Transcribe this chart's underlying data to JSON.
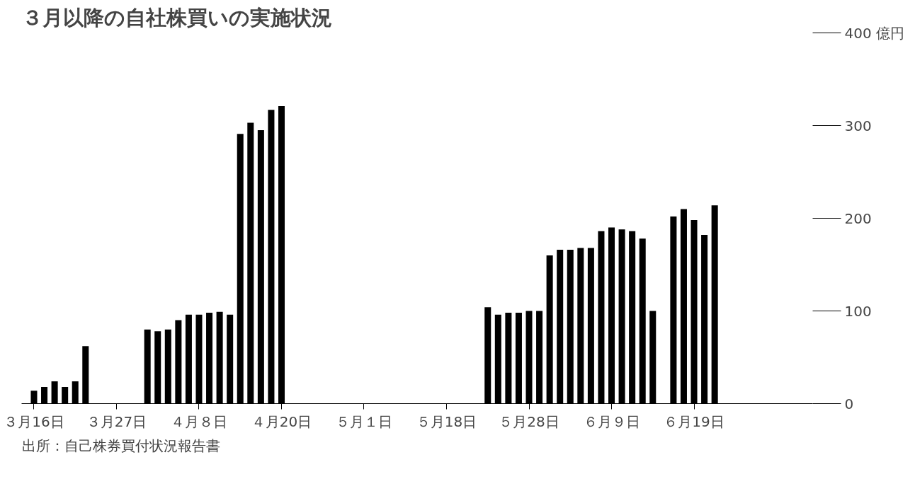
{
  "chart_data": {
    "type": "bar",
    "title": "３月以降の自社株買いの実施状況",
    "categories": [
      "３月16日",
      null,
      null,
      null,
      null,
      null,
      null,
      null,
      "３月27日",
      null,
      null,
      null,
      null,
      null,
      null,
      null,
      "４月８日",
      null,
      null,
      null,
      null,
      null,
      null,
      null,
      "４月20日",
      null,
      null,
      null,
      null,
      null,
      null,
      null,
      "５月１日",
      null,
      null,
      null,
      null,
      null,
      null,
      null,
      "５月18日",
      null,
      null,
      null,
      null,
      null,
      null,
      null,
      "５月28日",
      null,
      null,
      null,
      null,
      null,
      null,
      null,
      "６月９日",
      null,
      null,
      null,
      null,
      null,
      null,
      null,
      "６月19日",
      null,
      null,
      null,
      null,
      null,
      null,
      null
    ],
    "values": [
      14,
      18,
      24,
      18,
      24,
      62,
      0,
      0,
      0,
      0,
      0,
      80,
      78,
      80,
      90,
      96,
      96,
      98,
      99,
      96,
      291,
      303,
      295,
      317,
      321,
      0,
      0,
      0,
      0,
      0,
      0,
      0,
      0,
      0,
      0,
      0,
      0,
      0,
      0,
      0,
      0,
      0,
      0,
      0,
      104,
      96,
      98,
      98,
      100,
      100,
      160,
      166,
      166,
      168,
      168,
      186,
      190,
      188,
      186,
      178,
      100,
      0,
      202,
      210,
      198,
      182,
      214,
      0,
      0,
      0,
      0,
      0
    ],
    "color": "#000000",
    "ylim": [
      0,
      400
    ],
    "yticks": [
      0,
      100,
      200,
      300,
      {
        "value": 400,
        "label": "400 億円"
      }
    ],
    "grid": false,
    "annotations": [
      "出所：自己株券買付状況報告書"
    ]
  }
}
